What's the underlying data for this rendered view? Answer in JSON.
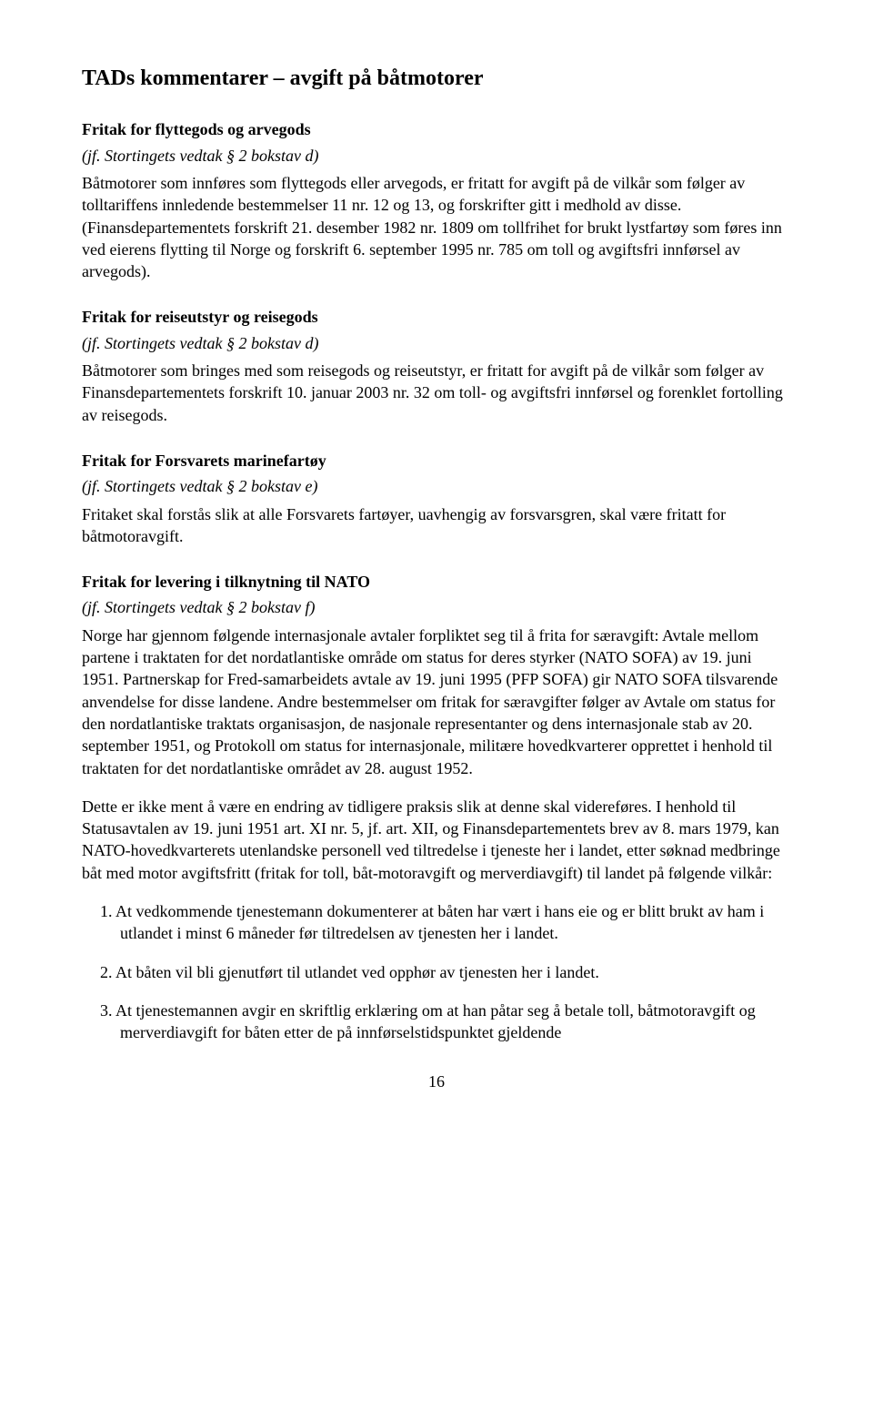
{
  "title": "TADs kommentarer – avgift på båtmotorer",
  "sections": {
    "s1": {
      "heading": "Fritak for flyttegods og arvegods",
      "ref": "(jf. Stortingets vedtak § 2 bokstav d)",
      "body": "Båtmotorer som innføres som flyttegods eller arvegods, er fritatt for avgift på de vilkår som følger av tolltariffens innledende bestemmelser 11 nr. 12 og 13, og forskrifter gitt i medhold av disse. (Finansdepartementets forskrift 21. desember 1982 nr. 1809 om tollfrihet for brukt lystfartøy som føres inn ved eierens flytting til Norge og forskrift 6. september 1995 nr. 785 om toll og avgiftsfri innførsel av arvegods)."
    },
    "s2": {
      "heading": "Fritak for reiseutstyr og reisegods",
      "ref": "(jf. Stortingets vedtak § 2 bokstav d)",
      "body": "Båtmotorer som bringes med som reisegods og reiseutstyr, er fritatt for avgift på de vilkår som følger av Finansdepartementets forskrift 10. januar 2003 nr. 32 om toll- og avgiftsfri innførsel og forenklet fortolling av reisegods."
    },
    "s3": {
      "heading": "Fritak for Forsvarets marinefartøy",
      "ref": "(jf. Stortingets vedtak § 2 bokstav e)",
      "body": "Fritaket skal forstås slik at alle Forsvarets fartøyer, uavhengig av forsvarsgren, skal være fritatt for båtmotoravgift."
    },
    "s4": {
      "heading": "Fritak for levering i tilknytning til NATO",
      "ref": "(jf. Stortingets vedtak § 2 bokstav f)",
      "body1": "Norge har gjennom følgende internasjonale avtaler forpliktet seg til å frita for særavgift: Avtale mellom partene i traktaten for det nordatlantiske område om status for deres styrker (NATO SOFA) av 19. juni 1951. Partnerskap for Fred-samarbeidets avtale av 19. juni 1995 (PFP SOFA) gir NATO SOFA tilsvarende anvendelse for disse landene. Andre bestemmelser om fritak for særavgifter følger av Avtale om status for den nordatlantiske traktats organisasjon, de nasjonale representanter og dens internasjonale stab av 20. september 1951, og Protokoll om status for internasjonale, militære hovedkvarterer opprettet i henhold til traktaten for det nordatlantiske området av 28. august 1952.",
      "body2": "Dette er ikke ment å være en endring av tidligere praksis slik at denne skal videreføres. I henhold til Statusavtalen av 19. juni 1951 art. XI nr. 5, jf. art. XII, og Finansdepartementets brev av 8. mars 1979, kan NATO-hovedkvarterets utenlandske personell ved tiltredelse i tjeneste her i landet, etter søknad medbringe båt med motor avgiftsfritt (fritak for toll, båt-motoravgift og merverdiavgift) til landet på følgende vilkår:",
      "items": {
        "i1": "1.  At vedkommende tjenestemann dokumenterer at båten har vært i hans eie og er blitt brukt av ham i utlandet i minst 6 måneder før tiltredelsen av tjenesten her i landet.",
        "i2": "2.  At båten vil bli gjenutført til utlandet ved opphør av tjenesten her i landet.",
        "i3": "3.  At tjenestemannen avgir en skriftlig erklæring om at han påtar seg å betale toll, båtmotoravgift og merverdiavgift for båten etter de på innførselstidspunktet gjeldende"
      }
    }
  },
  "page": "16"
}
